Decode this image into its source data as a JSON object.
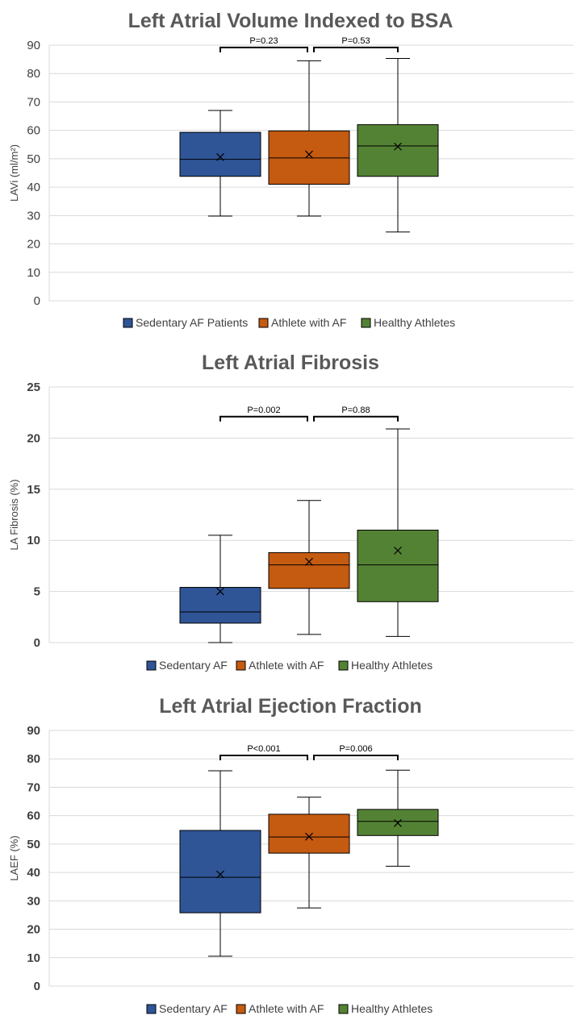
{
  "chart_data": [
    {
      "type": "boxplot",
      "title": "Left Atrial Volume Indexed to BSA",
      "ylabel": "LAVi (ml/m²)",
      "ylim": [
        0,
        90
      ],
      "yticks": [
        0,
        10,
        20,
        30,
        40,
        50,
        60,
        70,
        80,
        90
      ],
      "bold_ticks": false,
      "grid": true,
      "legend_position": "bottom",
      "series": [
        {
          "name": "Sedentary AF Patients",
          "color": "#2F5597",
          "min": 29.8,
          "q1": 43.8,
          "median": 49.8,
          "q3": 59.3,
          "max": 67,
          "mean": 50.6
        },
        {
          "name": "Athlete with AF",
          "color": "#C55A11",
          "min": 29.8,
          "q1": 41,
          "median": 50.3,
          "q3": 59.8,
          "max": 84.5,
          "mean": 51.5
        },
        {
          "name": "Healthy Athletes",
          "color": "#548235",
          "min": 24.2,
          "q1": 43.8,
          "median": 54.5,
          "q3": 62,
          "max": 85.3,
          "mean": 54.3
        }
      ],
      "comparisons": [
        {
          "label": "P=0.23",
          "from": 1,
          "to": 2,
          "y": 89.2
        },
        {
          "label": "P=0.53",
          "from": 2,
          "to": 3,
          "y": 89.2
        }
      ]
    },
    {
      "type": "boxplot",
      "title": "Left Atrial Fibrosis",
      "ylabel": "LA Fibrosis (%)",
      "ylim": [
        0,
        25
      ],
      "yticks": [
        0,
        5,
        10,
        15,
        20,
        25
      ],
      "bold_ticks": true,
      "grid": true,
      "legend_position": "bottom",
      "series": [
        {
          "name": "Sedentary AF",
          "color": "#2F5597",
          "min": 0,
          "q1": 1.9,
          "median": 3,
          "q3": 5.4,
          "max": 10.5,
          "mean": 5
        },
        {
          "name": "Athlete with AF",
          "color": "#C55A11",
          "min": 0.8,
          "q1": 5.3,
          "median": 7.6,
          "q3": 8.8,
          "max": 13.9,
          "mean": 7.9
        },
        {
          "name": "Healthy Athletes",
          "color": "#548235",
          "min": 0.6,
          "q1": 4,
          "median": 7.6,
          "q3": 11,
          "max": 20.9,
          "mean": 9
        }
      ],
      "comparisons": [
        {
          "label": "P=0.002",
          "from": 1,
          "to": 2,
          "y": 22.1
        },
        {
          "label": "P=0.88",
          "from": 2,
          "to": 3,
          "y": 22.1
        }
      ]
    },
    {
      "type": "boxplot",
      "title": "Left Atrial Ejection Fraction",
      "ylabel": "LAEF (%)",
      "ylim": [
        0,
        90
      ],
      "yticks": [
        0,
        10,
        20,
        30,
        40,
        50,
        60,
        70,
        80,
        90
      ],
      "bold_ticks": true,
      "grid": true,
      "legend_position": "bottom",
      "series": [
        {
          "name": "Sedentary AF",
          "color": "#2F5597",
          "min": 10.5,
          "q1": 25.8,
          "median": 38.3,
          "q3": 54.8,
          "max": 75.8,
          "mean": 39.3
        },
        {
          "name": "Athlete with AF",
          "color": "#C55A11",
          "min": 27.5,
          "q1": 46.8,
          "median": 52.5,
          "q3": 60.5,
          "max": 66.5,
          "mean": 52.6
        },
        {
          "name": "Healthy Athletes",
          "color": "#548235",
          "min": 42.2,
          "q1": 53,
          "median": 58,
          "q3": 62.2,
          "max": 76,
          "mean": 57.4
        }
      ],
      "comparisons": [
        {
          "label": "P<0.001",
          "from": 1,
          "to": 2,
          "y": 81.2
        },
        {
          "label": "P=0.006",
          "from": 2,
          "to": 3,
          "y": 81.2
        }
      ]
    }
  ]
}
